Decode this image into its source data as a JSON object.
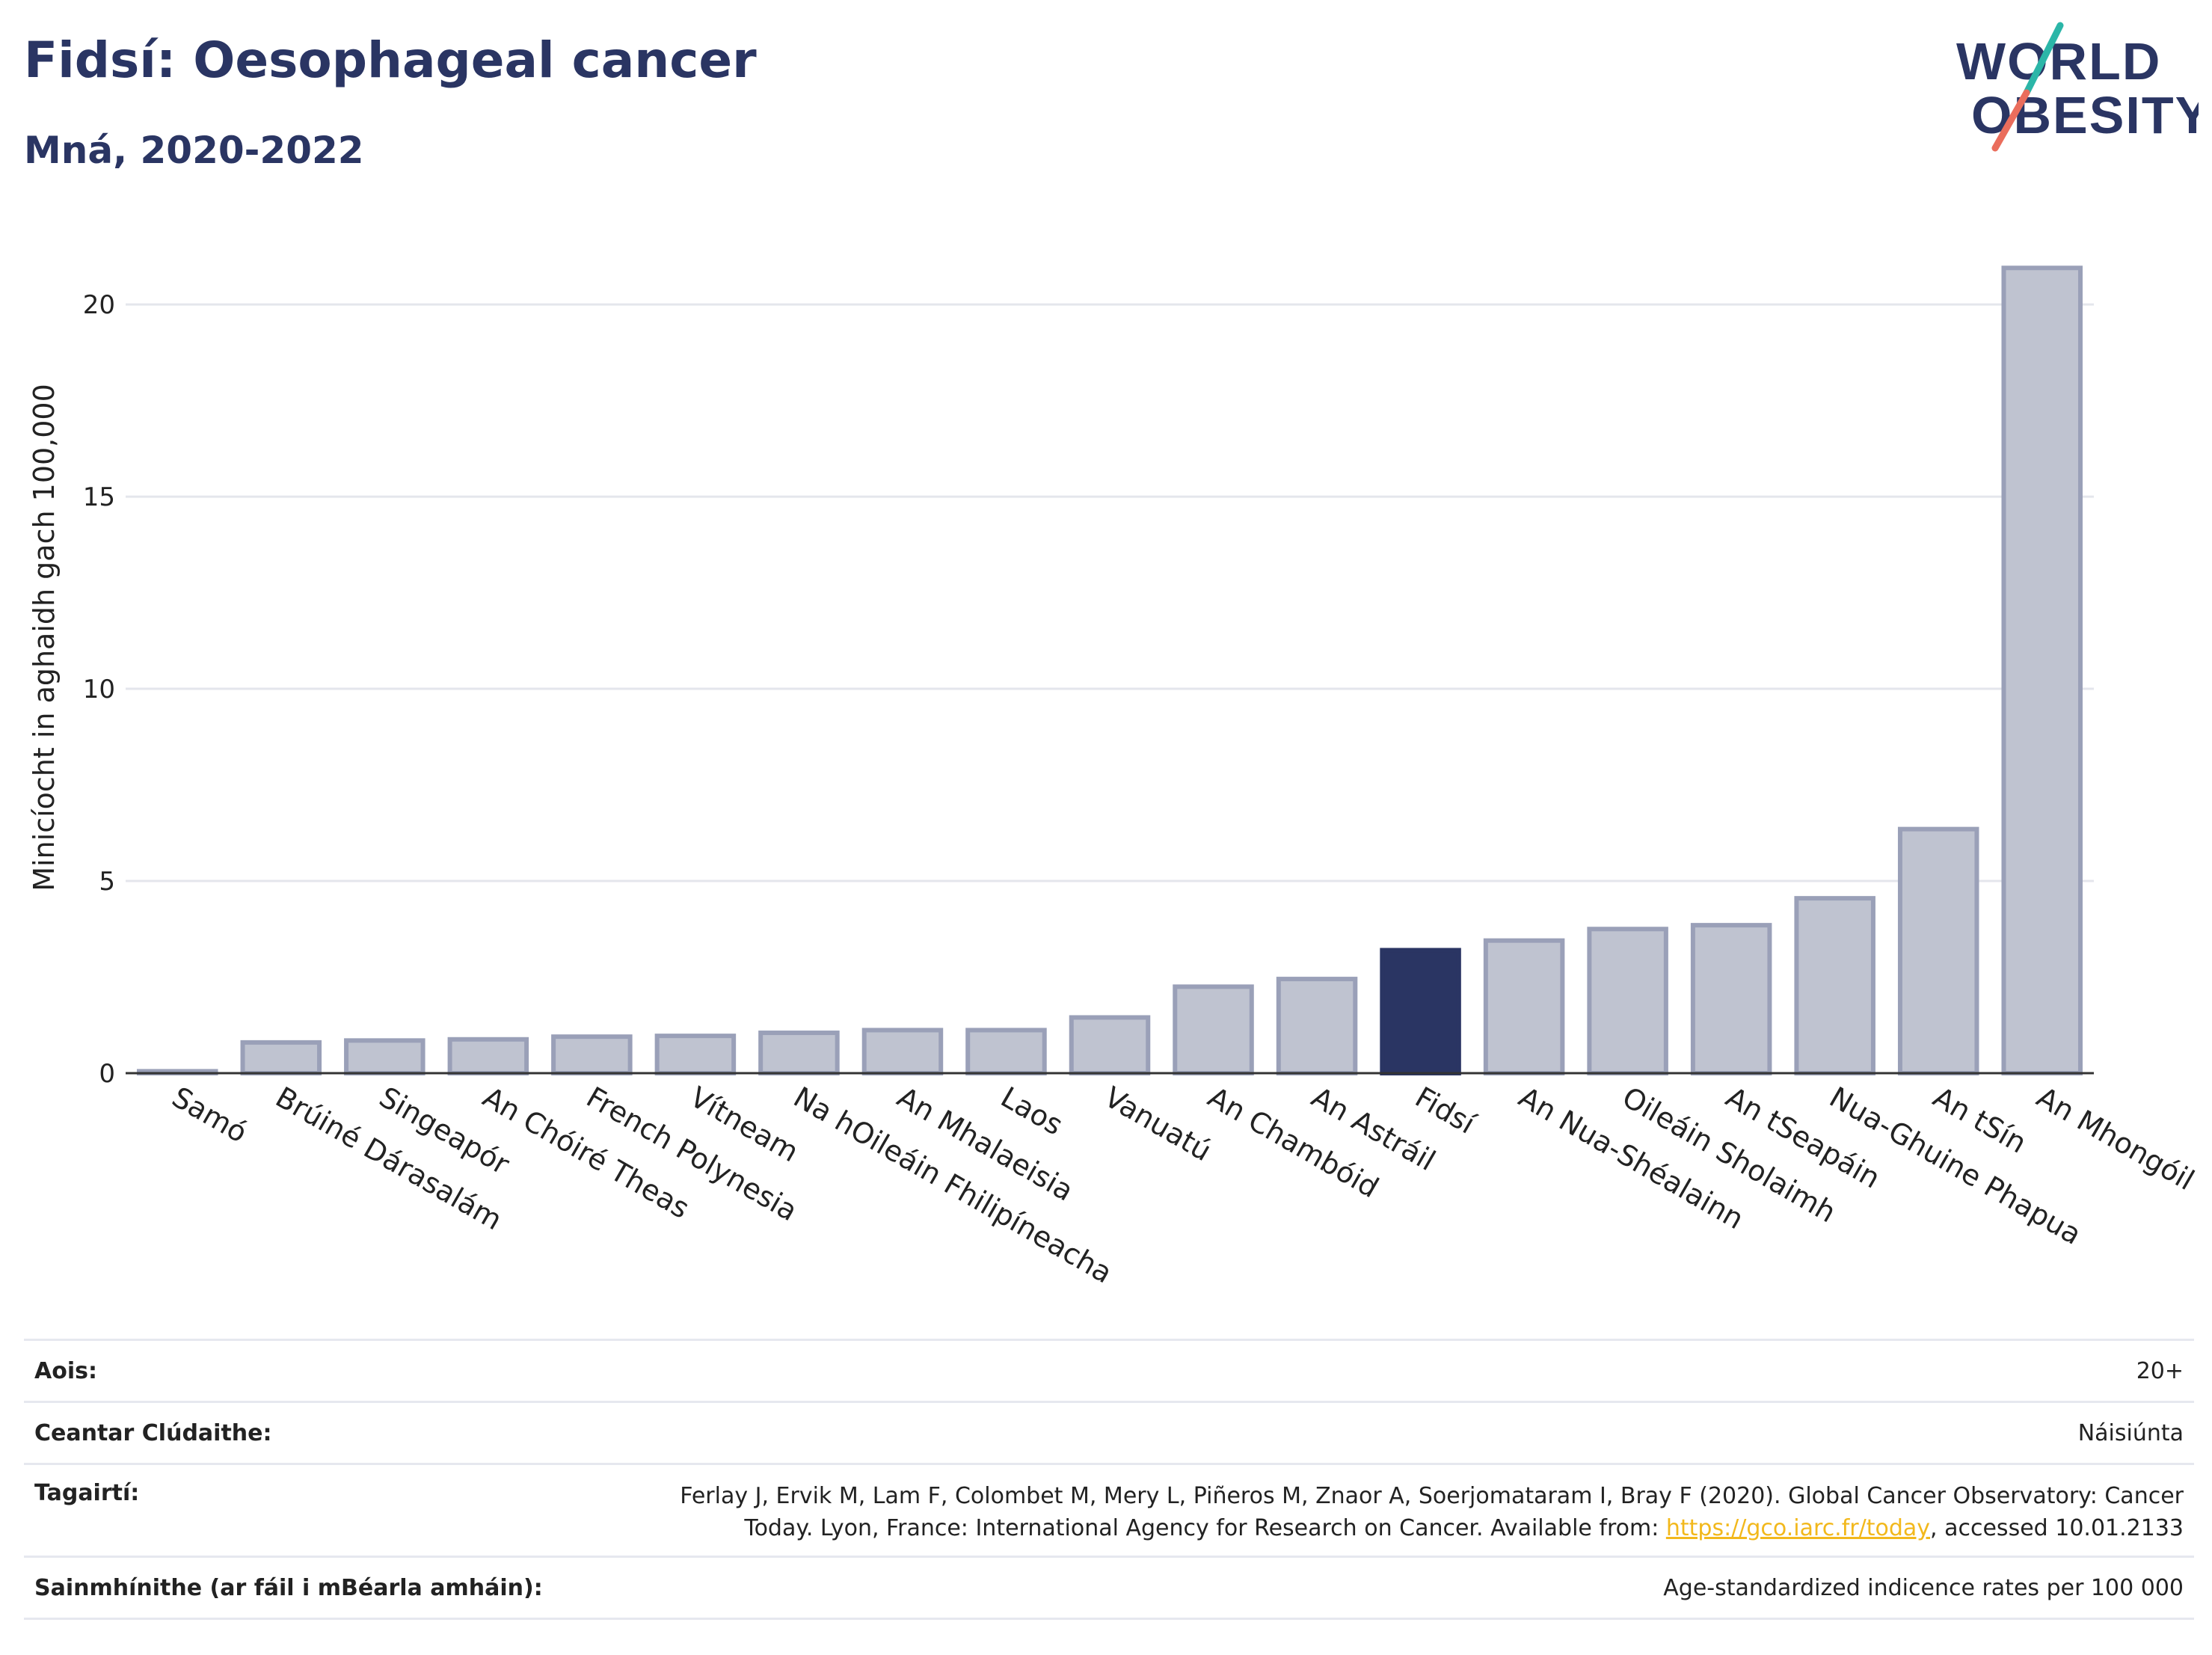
{
  "header": {
    "title": "Fidsí: Oesophageal cancer",
    "subtitle": "Mná, 2020-2022"
  },
  "logo": {
    "line1": "WORLD",
    "line2": "OBESITY"
  },
  "colors": {
    "highlight": "#2a3563",
    "bar": "#bfc3d0",
    "bar_stroke": "#9aa0b8",
    "grid": "#e4e6ec",
    "axis": "#333333",
    "link": "#f2b81c"
  },
  "chart_data": {
    "type": "bar",
    "ylabel": "Minicíocht in aghaidh gach 100,000",
    "ylim": [
      0,
      21.5
    ],
    "yticks": [
      0,
      5,
      10,
      15,
      20
    ],
    "grid": true,
    "highlight_category": "Fidsí",
    "categories": [
      "Samó",
      "Brúiné Dárasalám",
      "Singeapór",
      "An Chóiré Theas",
      "French Polynesia",
      "Vítneam",
      "Na hOileáin Fhilipíneacha",
      "An Mhalaeisia",
      "Laos",
      "Vanuatú",
      "An Chambóid",
      "An Astráil",
      "Fidsí",
      "An Nua-Shéalainn",
      "Oileáin Sholaimh",
      "An tSeapáin",
      "Nua-Ghuine Phapua",
      "An tSín",
      "An Mhongóil"
    ],
    "values": [
      0.05,
      0.8,
      0.85,
      0.88,
      0.95,
      0.97,
      1.05,
      1.12,
      1.12,
      1.45,
      2.25,
      2.45,
      3.2,
      3.45,
      3.75,
      3.85,
      4.55,
      6.35,
      20.95
    ]
  },
  "meta": {
    "age_label": "Aois:",
    "age_value": "20+",
    "coverage_label": "Ceantar Clúdaithe:",
    "coverage_value": "Náisiúnta",
    "refs_label": "Tagairtí:",
    "refs_line1": "Ferlay J, Ervik M, Lam F, Colombet M, Mery L, Piñeros M, Znaor A, Soerjomataram I, Bray F (2020). Global Cancer Observatory: Cancer",
    "refs_line2_before": "Today. Lyon, France: International Agency for Research on Cancer. Available from: ",
    "refs_link": "https://gco.iarc.fr/today",
    "refs_line2_after": ", accessed 10.01.2133",
    "defs_label": "Sainmhínithe (ar fáil i mBéarla amháin):",
    "defs_value": "Age-standardized indicence rates per 100 000"
  }
}
